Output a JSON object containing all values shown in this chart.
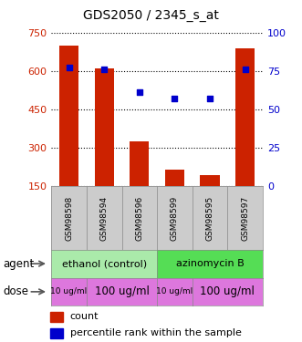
{
  "title": "GDS2050 / 2345_s_at",
  "samples": [
    "GSM98598",
    "GSM98594",
    "GSM98596",
    "GSM98599",
    "GSM98595",
    "GSM98597"
  ],
  "bar_values": [
    700,
    610,
    325,
    215,
    195,
    690
  ],
  "dot_values": [
    77,
    76,
    61,
    57,
    57,
    76
  ],
  "bar_color": "#cc2200",
  "dot_color": "#0000cc",
  "ylim_left": [
    150,
    750
  ],
  "ylim_right": [
    0,
    100
  ],
  "yticks_left": [
    150,
    300,
    450,
    600,
    750
  ],
  "yticks_right": [
    0,
    25,
    50,
    75,
    100
  ],
  "agent_groups": [
    {
      "label": "ethanol (control)",
      "color": "#aaeaaa",
      "span": [
        0,
        3
      ]
    },
    {
      "label": "azinomycin B",
      "color": "#55dd55",
      "span": [
        3,
        6
      ]
    }
  ],
  "dose_groups": [
    {
      "label": "10 ug/ml",
      "span": [
        0,
        1
      ],
      "fontsize": 6.5
    },
    {
      "label": "100 ug/ml",
      "span": [
        1,
        3
      ],
      "fontsize": 8.5
    },
    {
      "label": "10 ug/ml",
      "span": [
        3,
        4
      ],
      "fontsize": 6.5
    },
    {
      "label": "100 ug/ml",
      "span": [
        4,
        6
      ],
      "fontsize": 8.5
    }
  ],
  "dose_color": "#dd77dd",
  "sample_bg_color": "#cccccc",
  "left_label_color": "#cc2200",
  "right_label_color": "#0000cc",
  "background_color": "#ffffff"
}
